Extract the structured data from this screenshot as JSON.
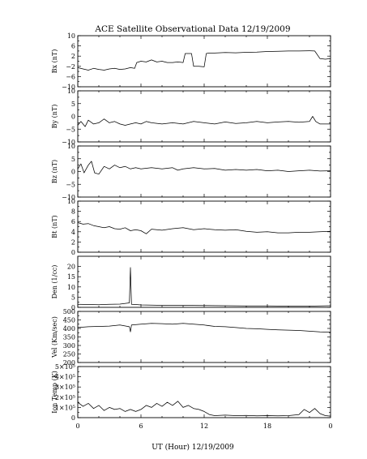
{
  "chart_data": {
    "type": "line",
    "title": "ACE Satellite Observational Data   12/19/2009",
    "xlabel": "UT (Hour)  12/19/2009",
    "x_ticks": [
      "0",
      "6",
      "12",
      "18",
      "0"
    ],
    "xlim": [
      0,
      24
    ],
    "panels": [
      {
        "id": "bx",
        "ylabel": "Bx (nT)",
        "ylim": [
          -10,
          10
        ],
        "yticks": [
          {
            "value": 10,
            "label": "10"
          },
          {
            "value": 6,
            "label": "6"
          },
          {
            "value": 2,
            "label": "2"
          },
          {
            "value": -2,
            "label": "−2"
          },
          {
            "value": -6,
            "label": "−6"
          },
          {
            "value": -10,
            "label": "−10"
          }
        ],
        "x": [
          0,
          0.5,
          1,
          1.5,
          2,
          2.5,
          3,
          3.5,
          4,
          4.5,
          5,
          5.4,
          5.6,
          6,
          6.5,
          7,
          7.5,
          8,
          8.5,
          9,
          9.5,
          10,
          10.2,
          10.8,
          11,
          11.5,
          12,
          12.2,
          12.5,
          13,
          14,
          15,
          16,
          17,
          18,
          19,
          20,
          21,
          22,
          22.5,
          23,
          23.5,
          24
        ],
        "values": [
          -2.5,
          -3.0,
          -3.5,
          -2.8,
          -3.2,
          -3.5,
          -3.0,
          -2.8,
          -3.2,
          -3.0,
          -2.5,
          -2.8,
          -0.5,
          0.0,
          -0.3,
          0.5,
          -0.3,
          0.0,
          -0.5,
          -0.5,
          -0.3,
          -0.5,
          3.0,
          3.0,
          -2.0,
          -2.0,
          -2.2,
          3.0,
          3.2,
          3.2,
          3.4,
          3.3,
          3.5,
          3.6,
          3.8,
          3.9,
          4.0,
          4.0,
          4.1,
          4.0,
          1.0,
          0.8,
          1.0
        ]
      },
      {
        "id": "by",
        "ylabel": "By (nT)",
        "ylim": [
          -10,
          10
        ],
        "yticks": [
          {
            "value": 10,
            "label": "10"
          },
          {
            "value": 5,
            "label": "5"
          },
          {
            "value": 0,
            "label": "0"
          },
          {
            "value": -5,
            "label": "−5"
          },
          {
            "value": -10,
            "label": "−10"
          }
        ],
        "x": [
          0,
          0.3,
          0.7,
          1,
          1.5,
          2,
          2.5,
          3,
          3.5,
          4,
          4.5,
          5,
          5.5,
          6,
          6.5,
          7,
          8,
          9,
          10,
          11,
          12,
          13,
          14,
          15,
          16,
          17,
          18,
          19,
          20,
          21,
          22,
          22.3,
          22.6,
          23,
          24
        ],
        "values": [
          -3.5,
          -2.0,
          -4.0,
          -1.5,
          -3.0,
          -2.5,
          -1.0,
          -2.5,
          -2.0,
          -3.0,
          -3.5,
          -3.0,
          -2.5,
          -3.0,
          -2.0,
          -2.5,
          -3.0,
          -2.5,
          -3.0,
          -2.0,
          -2.5,
          -3.0,
          -2.2,
          -2.8,
          -2.5,
          -2.0,
          -2.5,
          -2.2,
          -2.0,
          -2.3,
          -2.0,
          0.0,
          -2.0,
          -3.0,
          -3.0
        ]
      },
      {
        "id": "bz",
        "ylabel": "Bz (nT)",
        "ylim": [
          -10,
          10
        ],
        "yticks": [
          {
            "value": 10,
            "label": "10"
          },
          {
            "value": 5,
            "label": "5"
          },
          {
            "value": 0,
            "label": "0"
          },
          {
            "value": -5,
            "label": "−5"
          },
          {
            "value": -10,
            "label": "−10"
          }
        ],
        "x": [
          0,
          0.3,
          0.6,
          1,
          1.3,
          1.6,
          2,
          2.5,
          3,
          3.5,
          4,
          4.5,
          5,
          5.5,
          6,
          7,
          8,
          9,
          9.5,
          10,
          11,
          12,
          13,
          14,
          15,
          16,
          17,
          18,
          19,
          20,
          21,
          22,
          23,
          24
        ],
        "values": [
          1.0,
          3.0,
          -0.5,
          2.5,
          4.0,
          -0.5,
          -1.0,
          2.0,
          1.0,
          2.5,
          1.5,
          2.0,
          1.0,
          1.5,
          1.0,
          1.5,
          1.0,
          1.5,
          0.5,
          1.0,
          1.5,
          1.0,
          1.2,
          0.5,
          0.8,
          0.5,
          0.8,
          0.3,
          0.5,
          0.0,
          0.3,
          0.5,
          0.2,
          0.3
        ]
      },
      {
        "id": "bt",
        "ylabel": "Bt (nT)",
        "ylim": [
          0,
          10
        ],
        "yticks": [
          {
            "value": 10,
            "label": "10"
          },
          {
            "value": 8,
            "label": "8"
          },
          {
            "value": 6,
            "label": "6"
          },
          {
            "value": 4,
            "label": "4"
          },
          {
            "value": 2,
            "label": "2"
          },
          {
            "value": 0,
            "label": "0"
          }
        ],
        "x": [
          0,
          0.5,
          1,
          1.5,
          2,
          2.5,
          3,
          3.5,
          4,
          4.5,
          5,
          5.5,
          6,
          6.5,
          7,
          8,
          9,
          10,
          11,
          12,
          13,
          14,
          15,
          16,
          17,
          18,
          19,
          20,
          21,
          22,
          23,
          24
        ],
        "values": [
          5.8,
          5.5,
          5.6,
          5.2,
          5.0,
          4.8,
          5.0,
          4.6,
          4.5,
          4.8,
          4.2,
          4.4,
          4.2,
          3.6,
          4.5,
          4.3,
          4.6,
          4.8,
          4.4,
          4.6,
          4.4,
          4.3,
          4.4,
          4.1,
          3.9,
          4.0,
          3.8,
          3.8,
          3.9,
          3.9,
          4.0,
          4.1
        ]
      },
      {
        "id": "den",
        "ylabel": "Den (1/cc)",
        "ylim": [
          0,
          25
        ],
        "yticks": [
          {
            "value": 20,
            "label": "20"
          },
          {
            "value": 15,
            "label": "15"
          },
          {
            "value": 10,
            "label": "10"
          },
          {
            "value": 5,
            "label": "5"
          },
          {
            "value": 0,
            "label": "0"
          }
        ],
        "x": [
          0,
          1,
          2,
          3,
          4,
          4.9,
          5.0,
          5.1,
          5.5,
          6,
          8,
          10,
          12,
          14,
          16,
          18,
          20,
          22,
          24
        ],
        "values": [
          1.5,
          1.4,
          1.3,
          1.5,
          1.6,
          2.2,
          19.5,
          1.5,
          1.4,
          1.2,
          1.0,
          1.0,
          0.9,
          0.8,
          0.7,
          0.7,
          0.6,
          0.6,
          0.8
        ]
      },
      {
        "id": "vel",
        "ylabel": "Vel (Km/sec)",
        "ylim": [
          200,
          500
        ],
        "yticks": [
          {
            "value": 500,
            "label": "500"
          },
          {
            "value": 450,
            "label": "450"
          },
          {
            "value": 400,
            "label": "400"
          },
          {
            "value": 350,
            "label": "350"
          },
          {
            "value": 300,
            "label": "300"
          },
          {
            "value": 250,
            "label": "250"
          },
          {
            "value": 200,
            "label": "200"
          }
        ],
        "x": [
          0,
          1,
          2,
          3,
          4,
          4.9,
          5.0,
          5.1,
          6,
          7,
          8,
          9,
          10,
          11,
          12,
          13,
          14,
          15,
          16,
          17,
          18,
          19,
          20,
          21,
          22,
          23,
          24
        ],
        "values": [
          405,
          410,
          412,
          414,
          420,
          410,
          380,
          420,
          425,
          430,
          428,
          425,
          430,
          425,
          420,
          412,
          410,
          405,
          400,
          398,
          395,
          392,
          390,
          388,
          384,
          380,
          378
        ]
      },
      {
        "id": "temp",
        "ylabel": "Ion Temp (K)",
        "ylim": [
          0,
          500000
        ],
        "yticks": [
          {
            "value": 500000,
            "label": "5×10⁵"
          },
          {
            "value": 400000,
            "label": "4×10⁵"
          },
          {
            "value": 300000,
            "label": "3×10⁵"
          },
          {
            "value": 200000,
            "label": "2×10⁵"
          },
          {
            "value": 100000,
            "label": "1×10⁵"
          },
          {
            "value": 0,
            "label": "0"
          }
        ],
        "x": [
          0,
          0.5,
          1,
          1.5,
          2,
          2.5,
          3,
          3.5,
          4,
          4.5,
          5,
          5.5,
          6,
          6.5,
          7,
          7.5,
          8,
          8.5,
          9,
          9.5,
          10,
          10.5,
          11,
          11.5,
          12,
          12.5,
          13,
          14,
          15,
          16,
          17,
          18,
          19,
          20,
          21,
          21.5,
          22,
          22.5,
          23,
          23.5,
          24
        ],
        "values": [
          150000,
          110000,
          140000,
          90000,
          120000,
          70000,
          100000,
          80000,
          90000,
          60000,
          80000,
          60000,
          80000,
          120000,
          100000,
          140000,
          110000,
          150000,
          120000,
          160000,
          100000,
          120000,
          90000,
          80000,
          60000,
          30000,
          20000,
          25000,
          20000,
          22000,
          18000,
          20000,
          18000,
          20000,
          30000,
          80000,
          50000,
          90000,
          40000,
          20000,
          15000
        ]
      }
    ]
  }
}
